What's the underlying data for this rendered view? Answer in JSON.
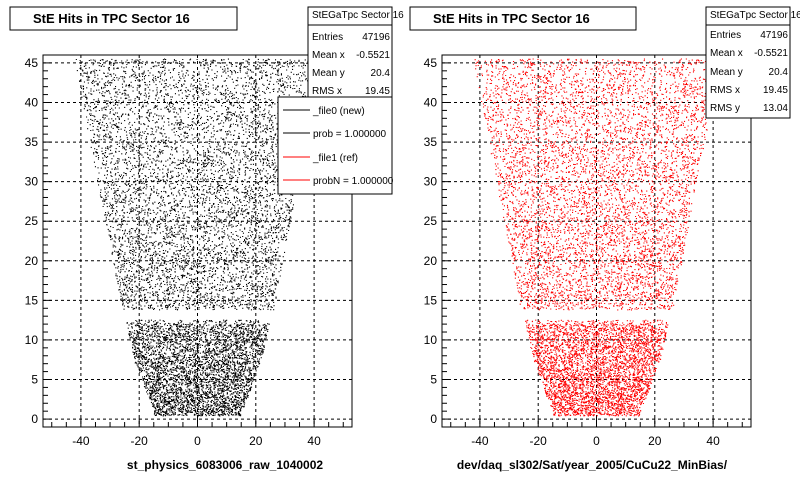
{
  "chart_data": [
    {
      "type": "scatter",
      "title": "StE Hits in TPC Sector 16",
      "xlabel": "",
      "ylabel": "",
      "xlim": [
        -53,
        53
      ],
      "ylim": [
        -1,
        46
      ],
      "x_ticks": [
        -40,
        -20,
        0,
        20,
        40
      ],
      "y_ticks": [
        0,
        5,
        10,
        15,
        20,
        25,
        30,
        35,
        40,
        45
      ],
      "grid": true,
      "marker_color": "#000000",
      "stats_box": {
        "title": "StEGaTpc Sector 16",
        "rows": [
          {
            "label": "Entries",
            "value": "47196"
          },
          {
            "label": "Mean x",
            "value": "-0.5521"
          },
          {
            "label": "Mean y",
            "value": "20.4"
          },
          {
            "label": "RMS x",
            "value": "19.45"
          }
        ]
      },
      "legend": {
        "placement": "top-right",
        "entries": [
          {
            "label": "_file0 (new)",
            "color": "#000000"
          },
          {
            "label": "prob = 1.000000",
            "color": "#000000"
          },
          {
            "label": "_file1 (ref)",
            "color": "#ff0000"
          },
          {
            "label": "probN = 1.000000",
            "color": "#ff0000"
          }
        ]
      },
      "footer": "st_physics_6083006_raw_1040002"
    },
    {
      "type": "scatter",
      "title": "StE Hits in TPC Sector 16",
      "xlabel": "",
      "ylabel": "",
      "xlim": [
        -53,
        53
      ],
      "ylim": [
        -1,
        46
      ],
      "x_ticks": [
        -40,
        -20,
        0,
        20,
        40
      ],
      "y_ticks": [
        0,
        5,
        10,
        15,
        20,
        25,
        30,
        35,
        40,
        45
      ],
      "grid": true,
      "marker_color": "#ff0000",
      "stats_box": {
        "title": "StEGaTpc Sector 16",
        "rows": [
          {
            "label": "Entries",
            "value": "47196"
          },
          {
            "label": "Mean x",
            "value": "-0.5521"
          },
          {
            "label": "Mean y",
            "value": "20.4"
          },
          {
            "label": "RMS x",
            "value": "19.45"
          },
          {
            "label": "RMS y",
            "value": "13.04"
          }
        ]
      },
      "footer": "dev/daq_sl302/Sat/year_2005/CuCu22_MinBias/"
    }
  ]
}
